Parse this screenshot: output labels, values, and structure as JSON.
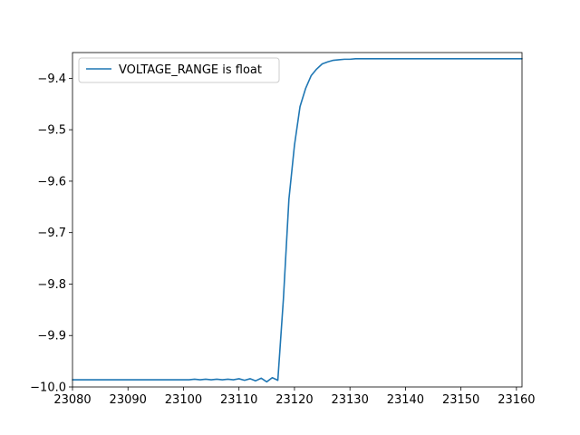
{
  "chart_data": {
    "type": "line",
    "title": "",
    "xlabel": "",
    "ylabel": "",
    "xlim": [
      23080,
      23161
    ],
    "ylim": [
      -10.0,
      -9.35
    ],
    "xticks": [
      23080,
      23090,
      23100,
      23110,
      23120,
      23130,
      23140,
      23150,
      23160
    ],
    "xtick_labels": [
      "23080",
      "23090",
      "23100",
      "23110",
      "23120",
      "23130",
      "23140",
      "23150",
      "23160"
    ],
    "yticks": [
      -10.0,
      -9.9,
      -9.8,
      -9.7,
      -9.6,
      -9.5,
      -9.4
    ],
    "ytick_labels": [
      "−10.0",
      "−9.9",
      "−9.8",
      "−9.7",
      "−9.6",
      "−9.5",
      "−9.4"
    ],
    "grid": false,
    "legend": {
      "position": "top-left"
    },
    "series": [
      {
        "name": "VOLTAGE_RANGE is float",
        "color": "#1f77b4",
        "x": [
          23080,
          23081,
          23082,
          23083,
          23084,
          23085,
          23086,
          23087,
          23088,
          23089,
          23090,
          23091,
          23092,
          23093,
          23094,
          23095,
          23096,
          23097,
          23098,
          23099,
          23100,
          23101,
          23102,
          23103,
          23104,
          23105,
          23106,
          23107,
          23108,
          23109,
          23110,
          23111,
          23112,
          23113,
          23114,
          23115,
          23116,
          23117,
          23118,
          23119,
          23120,
          23121,
          23122,
          23123,
          23124,
          23125,
          23126,
          23127,
          23128,
          23129,
          23130,
          23131,
          23132,
          23133,
          23134,
          23135,
          23136,
          23137,
          23138,
          23139,
          23140,
          23141,
          23142,
          23143,
          23144,
          23145,
          23146,
          23147,
          23148,
          23149,
          23150,
          23151,
          23152,
          23153,
          23154,
          23155,
          23156,
          23157,
          23158,
          23159,
          23160,
          23161
        ],
        "y": [
          -9.986,
          -9.986,
          -9.986,
          -9.986,
          -9.986,
          -9.986,
          -9.986,
          -9.986,
          -9.986,
          -9.986,
          -9.986,
          -9.986,
          -9.986,
          -9.986,
          -9.986,
          -9.986,
          -9.986,
          -9.986,
          -9.986,
          -9.986,
          -9.986,
          -9.986,
          -9.985,
          -9.986,
          -9.985,
          -9.986,
          -9.985,
          -9.986,
          -9.985,
          -9.986,
          -9.984,
          -9.987,
          -9.984,
          -9.988,
          -9.983,
          -9.99,
          -9.982,
          -9.987,
          -9.83,
          -9.635,
          -9.53,
          -9.455,
          -9.42,
          -9.395,
          -9.382,
          -9.372,
          -9.368,
          -9.365,
          -9.364,
          -9.363,
          -9.363,
          -9.362,
          -9.362,
          -9.362,
          -9.362,
          -9.362,
          -9.362,
          -9.362,
          -9.362,
          -9.362,
          -9.362,
          -9.362,
          -9.362,
          -9.362,
          -9.362,
          -9.362,
          -9.362,
          -9.362,
          -9.362,
          -9.362,
          -9.362,
          -9.362,
          -9.362,
          -9.362,
          -9.362,
          -9.362,
          -9.362,
          -9.362,
          -9.362,
          -9.362,
          -9.362,
          -9.362
        ]
      }
    ]
  }
}
